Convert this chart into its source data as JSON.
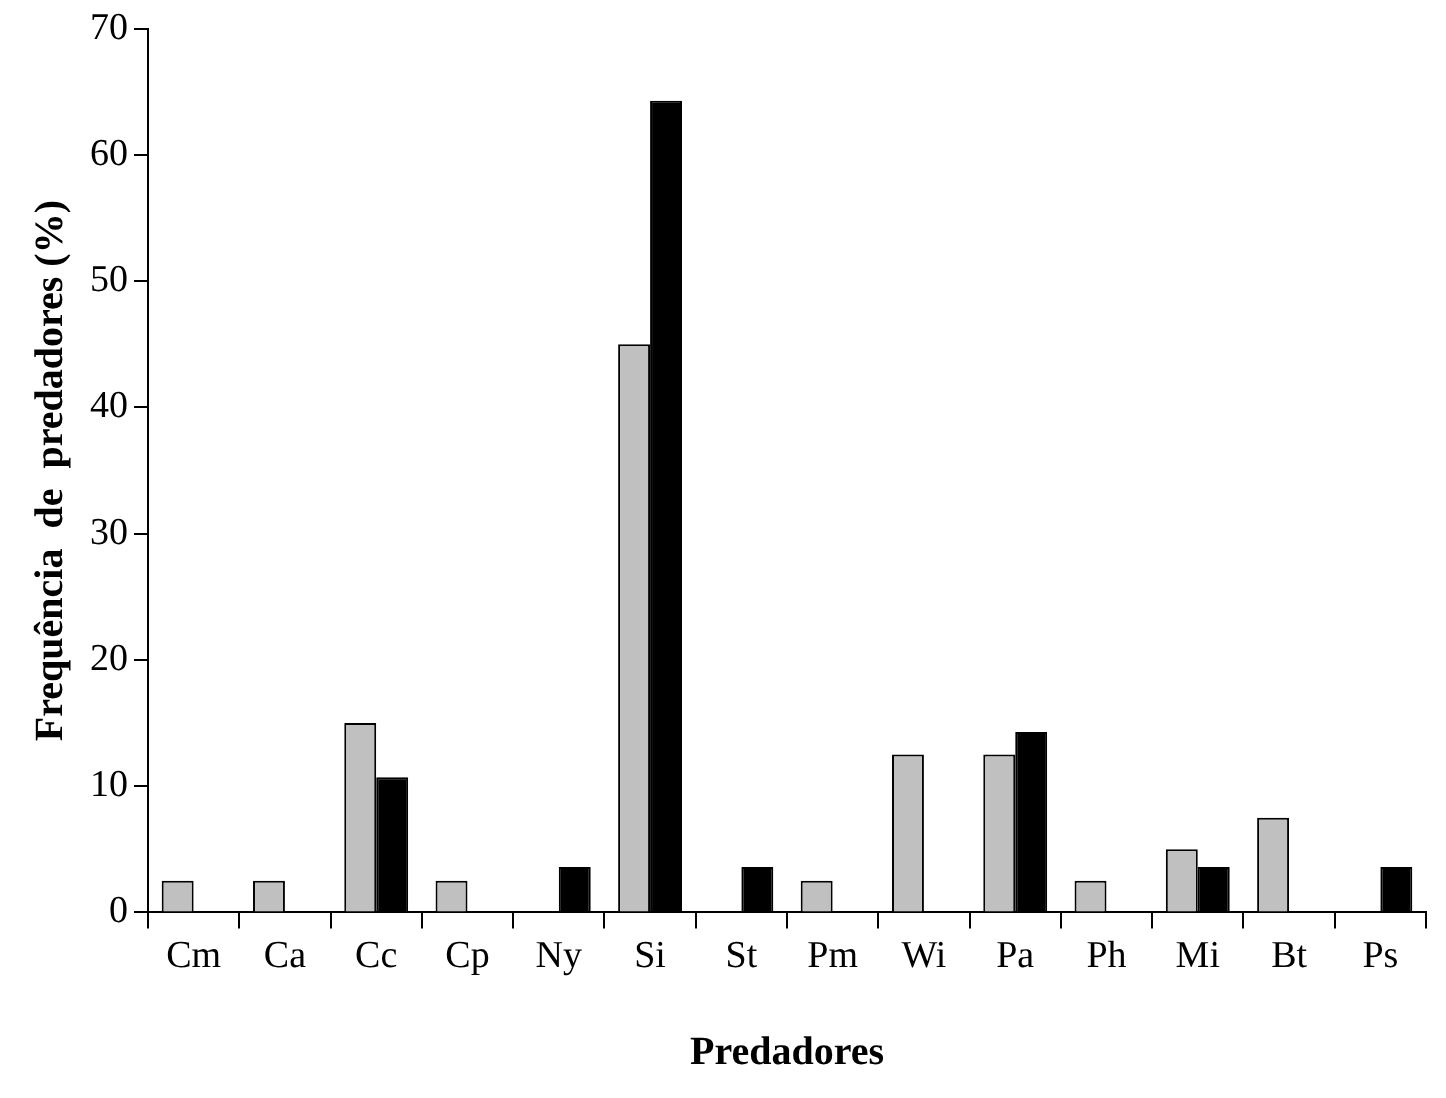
{
  "chart_data": {
    "type": "bar",
    "xlabel": "Predadores",
    "ylabel": "Frequência  de  predadores (%)",
    "categories": [
      "Cm",
      "Ca",
      "Cc",
      "Cp",
      "Ny",
      "Si",
      "St",
      "Pm",
      "Wi",
      "Pa",
      "Ph",
      "Mi",
      "Bt",
      "Ps"
    ],
    "series": [
      {
        "color": "#c0c0c0",
        "values": [
          2.5,
          2.5,
          15,
          2.5,
          0,
          45,
          0,
          2.5,
          12.5,
          12.5,
          2.5,
          5,
          7.5,
          0
        ]
      },
      {
        "color": "#000000",
        "values": [
          0,
          0,
          10.7,
          0,
          3.6,
          64.3,
          3.6,
          0,
          0,
          14.3,
          0,
          3.6,
          0,
          3.6
        ]
      }
    ],
    "ylim": [
      0,
      70
    ],
    "yticks": [
      0,
      10,
      20,
      30,
      40,
      50,
      60,
      70
    ],
    "grid": false,
    "legend": false
  }
}
